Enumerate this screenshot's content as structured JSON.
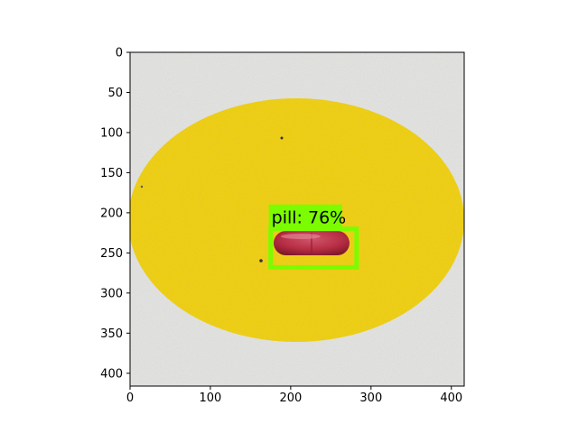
{
  "axes": {
    "x_ticks": [
      "0",
      "100",
      "200",
      "300",
      "400"
    ],
    "y_ticks": [
      "0",
      "50",
      "100",
      "150",
      "200",
      "250",
      "300",
      "350",
      "400"
    ],
    "xlim": [
      0,
      416
    ],
    "ylim": [
      416,
      0
    ],
    "x_tick_values": [
      0,
      100,
      200,
      300,
      400
    ],
    "y_tick_values": [
      0,
      50,
      100,
      150,
      200,
      250,
      300,
      350,
      400
    ]
  },
  "image": {
    "background_color": "#e3e3e1",
    "target_color": "#f0cf0a",
    "pill_color": "#b62d43"
  },
  "detection": {
    "label": "pill: 76%",
    "box_color": "#7cfc00",
    "box": {
      "x0": 175,
      "y0": 220,
      "x1": 282,
      "y1": 268
    }
  }
}
